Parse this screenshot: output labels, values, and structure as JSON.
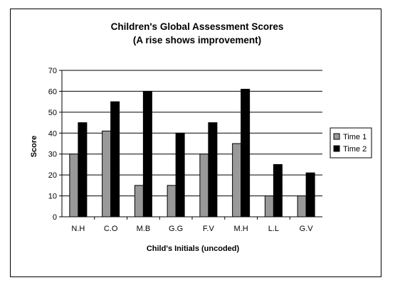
{
  "chart_data": {
    "type": "bar",
    "title": "Children's Global Assessment Scores",
    "subtitle": "(A rise shows improvement)",
    "xlabel": "Child's Initials (uncoded)",
    "ylabel": "Score",
    "ylim": [
      0,
      70
    ],
    "yticks": [
      0,
      10,
      20,
      30,
      40,
      50,
      60,
      70
    ],
    "grid": true,
    "legend_position": "right",
    "categories": [
      "N.H",
      "C.O",
      "M.B",
      "G.G",
      "F.V",
      "M.H",
      "L.L",
      "G.V"
    ],
    "series": [
      {
        "name": "Time 1",
        "color": "#999999",
        "values": [
          30,
          41,
          15,
          15,
          30,
          35,
          10,
          10
        ]
      },
      {
        "name": "Time 2",
        "color": "#000000",
        "values": [
          45,
          55,
          60,
          40,
          45,
          61,
          25,
          21
        ]
      }
    ],
    "plot_background": "#ffffff",
    "gridline_color": "#000000"
  }
}
